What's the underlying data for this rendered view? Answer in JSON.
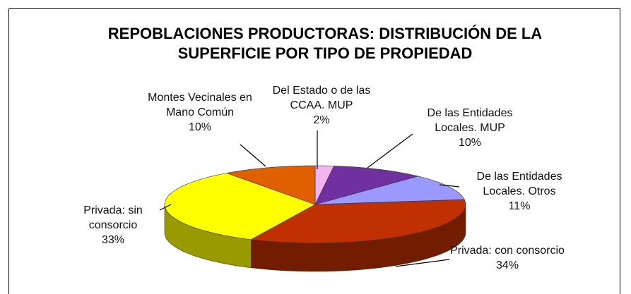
{
  "chart_data": {
    "type": "pie",
    "title": "REPOBLACIONES PRODUCTORAS: DISTRIBUCIÓN  DE LA SUPERFICIE POR TIPO DE PROPIEDAD",
    "categories": [
      "Del Estado o de las CCAA. MUP",
      "De las Entidades Locales. MUP",
      "De las Entidades Locales. Otros",
      "Privada: con consorcio",
      "Privada: sin consorcio",
      "Montes Vecinales en Mano Común"
    ],
    "values": [
      2,
      10,
      11,
      34,
      33,
      10
    ],
    "value_labels": [
      "2%",
      "10%",
      "11%",
      "34%",
      "33%",
      "10%"
    ],
    "colors": [
      "#f4b4f0",
      "#7030a0",
      "#9999ff",
      "#c03000",
      "#ffff00",
      "#e06000"
    ]
  }
}
